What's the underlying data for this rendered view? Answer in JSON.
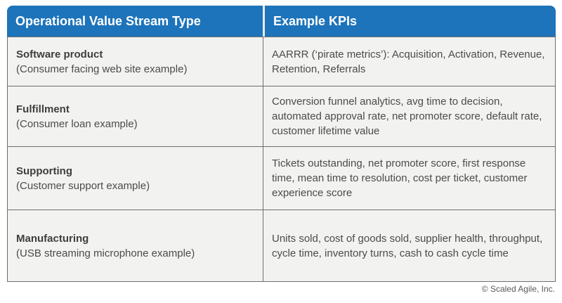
{
  "table": {
    "header": {
      "col1": "Operational Value Stream Type",
      "col2": "Example KPIs"
    },
    "rows": [
      {
        "type": "Software product",
        "example": "(Consumer facing web site example)",
        "kpis": "AARRR (‘pirate metrics’): Acquisition, Activation, Revenue, Retention, Referrals"
      },
      {
        "type": "Fulfillment",
        "example": "(Consumer loan example)",
        "kpis": "Conversion funnel analytics, avg time to decision, automated approval rate, net promoter score, default rate, customer lifetime value"
      },
      {
        "type": "Supporting",
        "example": "(Customer support example)",
        "kpis": "Tickets outstanding, net promoter score, first response time, mean time to resolution, cost per ticket, customer experience score"
      },
      {
        "type": "Manufacturing",
        "example": "(USB streaming microphone example)",
        "kpis": "Units sold, cost of goods sold, supplier health, throughput, cycle time, inventory turns, cash to cash cycle time"
      }
    ]
  },
  "footer": {
    "copyright": "© Scaled Agile, Inc."
  },
  "colors": {
    "header_bg": "#1d74ba",
    "header_text": "#ffffff",
    "row_bg": "#f2f2f0",
    "border": "#6e6e6e",
    "title_text": "#3e3e3e",
    "body_text": "#4b4b4b",
    "footer_text": "#595959"
  }
}
